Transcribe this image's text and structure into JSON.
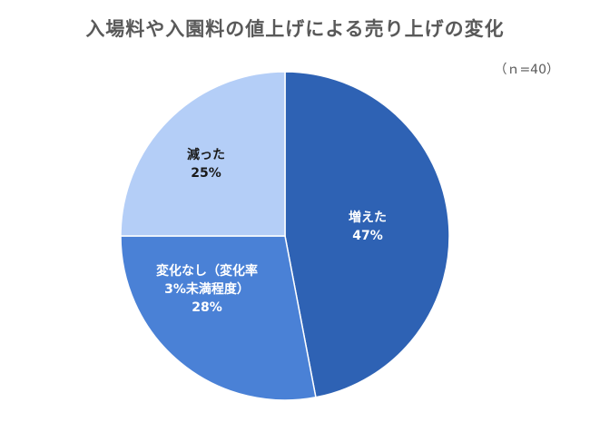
{
  "chart_data": {
    "type": "pie",
    "title": "入場料や入園料の値上げによる売り上げの変化",
    "note": "（ｎ=40）",
    "slices": [
      {
        "lines": [
          "増えた",
          "47%"
        ],
        "value": 47,
        "color": "#2E62B4",
        "text_color": "#ffffff"
      },
      {
        "lines": [
          "変化なし（変化率",
          "3%未満程度）",
          "28%"
        ],
        "value": 28,
        "color": "#4A81D6",
        "text_color": "#ffffff"
      },
      {
        "lines": [
          "減った",
          "25%"
        ],
        "value": 25,
        "color": "#B4CEF7",
        "text_color": "#1a1a1a"
      }
    ],
    "start": "12 o'clock",
    "direction": "clockwise",
    "legend": "none"
  }
}
